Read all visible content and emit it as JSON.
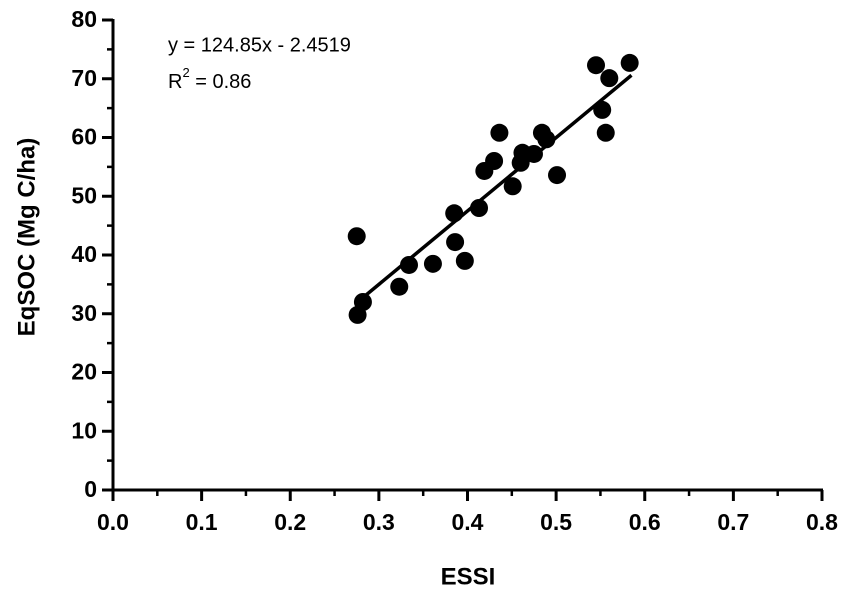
{
  "chart_data": {
    "type": "scatter",
    "x_label": "ESSI",
    "y_label": "EqSOC (Mg C/ha)",
    "equation_label": "y = 124.85x - 2.4519",
    "r_squared_label": [
      "R",
      "2",
      " = 0.86"
    ],
    "color": "#000000",
    "x": [
      0.275,
      0.276,
      0.282,
      0.323,
      0.334,
      0.361,
      0.385,
      0.386,
      0.397,
      0.413,
      0.419,
      0.43,
      0.436,
      0.451,
      0.46,
      0.462,
      0.475,
      0.484,
      0.489,
      0.501,
      0.545,
      0.552,
      0.556,
      0.56,
      0.583
    ],
    "values": [
      43.2,
      29.8,
      32.0,
      34.6,
      38.3,
      38.5,
      47.1,
      42.2,
      39.0,
      48.0,
      54.3,
      56.0,
      60.8,
      51.7,
      55.7,
      57.4,
      57.2,
      60.8,
      59.7,
      53.6,
      72.3,
      64.7,
      60.8,
      70.1,
      72.7
    ],
    "trend_line": {
      "x": [
        0.28,
        0.585
      ],
      "y": [
        32.5,
        70.6
      ]
    },
    "xlim": [
      0,
      0.8
    ],
    "ylim": [
      0,
      80
    ],
    "xticks": [
      {
        "value": 0,
        "label": "0.0"
      },
      0.1,
      0.2,
      0.3,
      0.4,
      0.5,
      0.6,
      0.7,
      0.8
    ],
    "yticks": [
      0,
      10,
      20,
      30,
      40,
      50,
      60,
      70,
      80
    ],
    "xminorticks": [
      0.05,
      0.15,
      0.25,
      0.35,
      0.45,
      0.55,
      0.65,
      0.75
    ],
    "yminorticks": [
      5,
      15,
      25,
      35,
      45,
      55,
      65,
      75
    ],
    "grid": false
  }
}
